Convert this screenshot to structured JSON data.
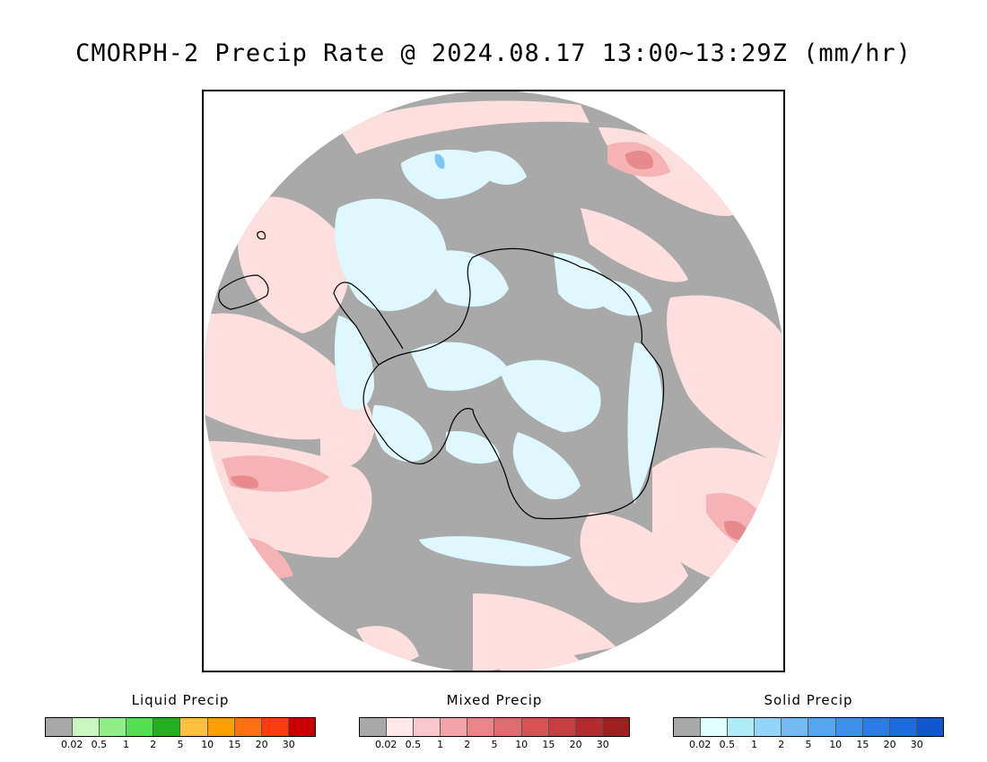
{
  "title": "CMORPH-2 Precip Rate @ 2024.08.17 13:00~13:29Z (mm/hr)",
  "colors": {
    "background_gray": "#a9a9a9",
    "mixed_light": "#fedfe0",
    "mixed_medium": "#f5b3b5",
    "mixed_strong": "#e88a8d",
    "solid_light": "#dff8fd",
    "solid_medium": "#bdeefd",
    "solid_blue": "#7ec6f5",
    "coastline": "#000000"
  },
  "legends": [
    {
      "title": "Liquid Precip",
      "colors": [
        "#a9a9a9",
        "#c8f8c0",
        "#90ee88",
        "#50e050",
        "#20b020",
        "#ffc040",
        "#ffa000",
        "#ff7010",
        "#ff3c10",
        "#c80000"
      ],
      "ticks": [
        "0.02",
        "0.5",
        "1",
        "2",
        "5",
        "10",
        "15",
        "20",
        "30"
      ]
    },
    {
      "title": "Mixed Precip",
      "colors": [
        "#a9a9a9",
        "#ffe8ea",
        "#fac8cc",
        "#f2a4a8",
        "#eb8488",
        "#e06b6e",
        "#d85254",
        "#c83e40",
        "#b52a2c",
        "#a02020"
      ],
      "ticks": [
        "0.02",
        "0.5",
        "1",
        "2",
        "5",
        "10",
        "15",
        "20",
        "30"
      ]
    },
    {
      "title": "Solid Precip",
      "colors": [
        "#a9a9a9",
        "#e0ffff",
        "#b0ecf8",
        "#94d4f8",
        "#74baf4",
        "#54a6f0",
        "#3c90ec",
        "#2c7ce8",
        "#1c6ce0",
        "#1058d0"
      ],
      "ticks": [
        "0.02",
        "0.5",
        "1",
        "2",
        "5",
        "10",
        "15",
        "20",
        "30"
      ]
    }
  ]
}
